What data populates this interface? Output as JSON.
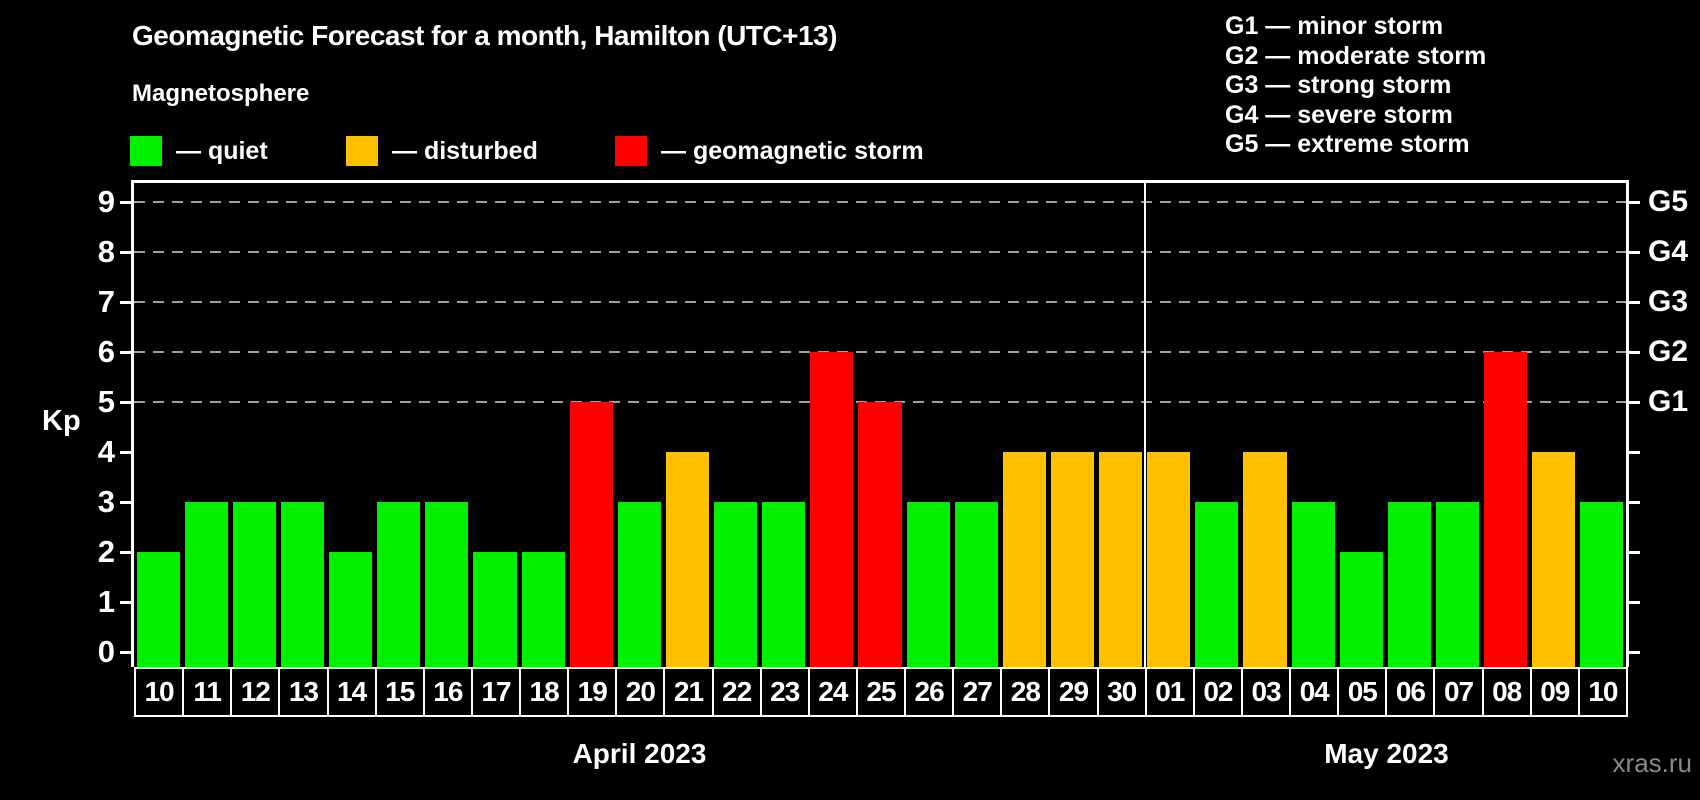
{
  "header": {
    "title": "Geomagnetic Forecast for a month, Hamilton (UTC+13)",
    "subtitle": "Magnetosphere"
  },
  "legend": {
    "items": [
      {
        "key": "quiet",
        "label": "— quiet"
      },
      {
        "key": "disturbed",
        "label": "— disturbed"
      },
      {
        "key": "storm",
        "label": "— geomagnetic storm"
      }
    ]
  },
  "g_legend": [
    "G1 — minor storm",
    "G2 — moderate storm",
    "G3 — strong storm",
    "G4 — severe storm",
    "G5 — extreme storm"
  ],
  "colors": {
    "quiet": "#00f000",
    "disturbed": "#ffc000",
    "storm": "#ff0000",
    "grid": "#a0a0a0",
    "axis": "#ffffff"
  },
  "watermark": "xras.ru",
  "chart_data": {
    "type": "bar",
    "title": "Geomagnetic Forecast for a month, Hamilton (UTC+13)",
    "xlabel": "",
    "ylabel": "Kp",
    "ylim": [
      0,
      9.5
    ],
    "yticks": [
      0,
      1,
      2,
      3,
      4,
      5,
      6,
      7,
      8,
      9
    ],
    "gridlines_at": [
      5,
      6,
      7,
      8,
      9
    ],
    "grid": "dashed, only at storm levels G1-G5",
    "legend_position": "top-left",
    "right_axis_labels": [
      {
        "label": "G1",
        "value": 5
      },
      {
        "label": "G2",
        "value": 6
      },
      {
        "label": "G3",
        "value": 7
      },
      {
        "label": "G4",
        "value": 8
      },
      {
        "label": "G5",
        "value": 9
      }
    ],
    "months": [
      {
        "label": "April 2023",
        "days": 21
      },
      {
        "label": "May 2023",
        "days": 10
      }
    ],
    "points": [
      {
        "day": "10",
        "kp": 2,
        "state": "quiet"
      },
      {
        "day": "11",
        "kp": 3,
        "state": "quiet"
      },
      {
        "day": "12",
        "kp": 3,
        "state": "quiet"
      },
      {
        "day": "13",
        "kp": 3,
        "state": "quiet"
      },
      {
        "day": "14",
        "kp": 2,
        "state": "quiet"
      },
      {
        "day": "15",
        "kp": 3,
        "state": "quiet"
      },
      {
        "day": "16",
        "kp": 3,
        "state": "quiet"
      },
      {
        "day": "17",
        "kp": 2,
        "state": "quiet"
      },
      {
        "day": "18",
        "kp": 2,
        "state": "quiet"
      },
      {
        "day": "19",
        "kp": 5,
        "state": "storm"
      },
      {
        "day": "20",
        "kp": 3,
        "state": "quiet"
      },
      {
        "day": "21",
        "kp": 4,
        "state": "disturbed"
      },
      {
        "day": "22",
        "kp": 3,
        "state": "quiet"
      },
      {
        "day": "23",
        "kp": 3,
        "state": "quiet"
      },
      {
        "day": "24",
        "kp": 6,
        "state": "storm"
      },
      {
        "day": "25",
        "kp": 5,
        "state": "storm"
      },
      {
        "day": "26",
        "kp": 3,
        "state": "quiet"
      },
      {
        "day": "27",
        "kp": 3,
        "state": "quiet"
      },
      {
        "day": "28",
        "kp": 4,
        "state": "disturbed"
      },
      {
        "day": "29",
        "kp": 4,
        "state": "disturbed"
      },
      {
        "day": "30",
        "kp": 4,
        "state": "disturbed"
      },
      {
        "day": "01",
        "kp": 4,
        "state": "disturbed"
      },
      {
        "day": "02",
        "kp": 3,
        "state": "quiet"
      },
      {
        "day": "03",
        "kp": 4,
        "state": "disturbed"
      },
      {
        "day": "04",
        "kp": 3,
        "state": "quiet"
      },
      {
        "day": "05",
        "kp": 2,
        "state": "quiet"
      },
      {
        "day": "06",
        "kp": 3,
        "state": "quiet"
      },
      {
        "day": "07",
        "kp": 3,
        "state": "quiet"
      },
      {
        "day": "08",
        "kp": 6,
        "state": "storm"
      },
      {
        "day": "09",
        "kp": 4,
        "state": "disturbed"
      },
      {
        "day": "10",
        "kp": 3,
        "state": "quiet"
      }
    ]
  }
}
